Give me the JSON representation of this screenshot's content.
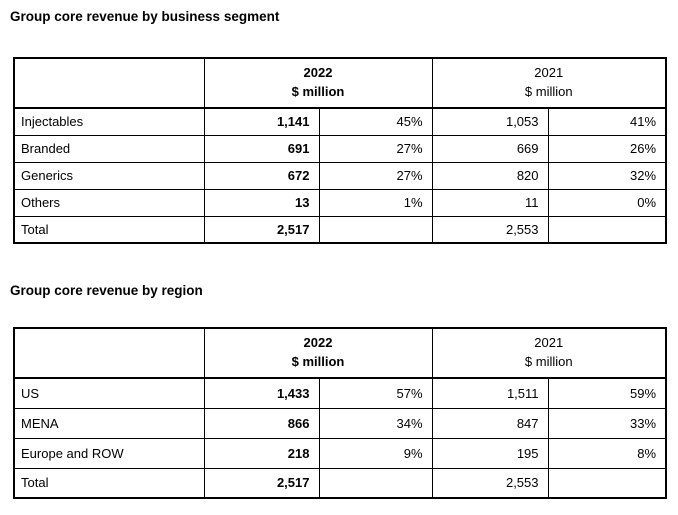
{
  "segment_section": {
    "title": "Group core revenue by business segment",
    "header": {
      "year_2022": "2022",
      "unit_2022": "$ million",
      "year_2021": "2021",
      "unit_2021": "$ million"
    },
    "rows": [
      {
        "label": "Injectables",
        "v2022": "1,141",
        "p2022": "45%",
        "v2021": "1,053",
        "p2021": "41%"
      },
      {
        "label": "Branded",
        "v2022": "691",
        "p2022": "27%",
        "v2021": "669",
        "p2021": "26%"
      },
      {
        "label": "Generics",
        "v2022": "672",
        "p2022": "27%",
        "v2021": "820",
        "p2021": "32%"
      },
      {
        "label": "Others",
        "v2022": "13",
        "p2022": "1%",
        "v2021": "11",
        "p2021": "0%"
      },
      {
        "label": "Total",
        "v2022": "2,517",
        "p2022": "",
        "v2021": "2,553",
        "p2021": ""
      }
    ]
  },
  "region_section": {
    "title": "Group core revenue by region",
    "header": {
      "year_2022": "2022",
      "unit_2022": "$ million",
      "year_2021": "2021",
      "unit_2021": "$ million"
    },
    "rows": [
      {
        "label": "US",
        "v2022": "1,433",
        "p2022": "57%",
        "v2021": "1,511",
        "p2021": "59%"
      },
      {
        "label": "MENA",
        "v2022": "866",
        "p2022": "34%",
        "v2021": "847",
        "p2021": "33%"
      },
      {
        "label": "Europe and ROW",
        "v2022": "218",
        "p2022": "9%",
        "v2021": "195",
        "p2021": "8%"
      },
      {
        "label": "Total",
        "v2022": "2,517",
        "p2022": "",
        "v2021": "2,553",
        "p2021": ""
      }
    ]
  },
  "colors": {
    "text": "#000000",
    "border": "#000000",
    "background": "#ffffff"
  }
}
